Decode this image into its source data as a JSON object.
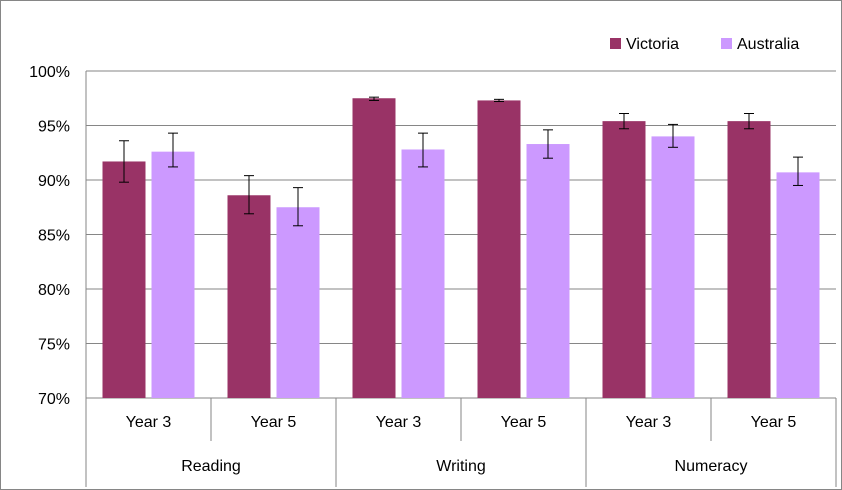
{
  "chart_data": {
    "type": "bar",
    "title": "",
    "xlabel": "",
    "ylabel": "",
    "ylim": [
      0.7,
      1.0
    ],
    "yticks": [
      "70%",
      "75%",
      "80%",
      "85%",
      "90%",
      "95%",
      "100%"
    ],
    "groups": [
      "Reading",
      "Writing",
      "Numeracy"
    ],
    "categories": [
      "Year 3",
      "Year 5",
      "Year 3",
      "Year 5",
      "Year 3",
      "Year 5"
    ],
    "category_group": [
      0,
      0,
      1,
      1,
      2,
      2
    ],
    "series": [
      {
        "name": "Victoria",
        "color": "#993366",
        "values": [
          0.917,
          0.886,
          0.975,
          0.973,
          0.954,
          0.954
        ],
        "error": [
          [
            0.898,
            0.936
          ],
          [
            0.869,
            0.904
          ],
          [
            0.973,
            0.976
          ],
          [
            0.972,
            0.974
          ],
          [
            0.947,
            0.961
          ],
          [
            0.947,
            0.961
          ]
        ]
      },
      {
        "name": "Australia",
        "color": "#cc99ff",
        "values": [
          0.926,
          0.875,
          0.928,
          0.933,
          0.94,
          0.907
        ],
        "error": [
          [
            0.912,
            0.943
          ],
          [
            0.858,
            0.893
          ],
          [
            0.912,
            0.943
          ],
          [
            0.92,
            0.946
          ],
          [
            0.93,
            0.951
          ],
          [
            0.895,
            0.921
          ]
        ]
      }
    ],
    "grid": true,
    "legend_position": "top-right"
  }
}
